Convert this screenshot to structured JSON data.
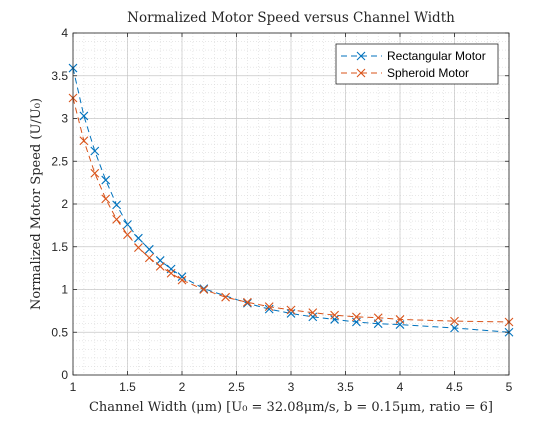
{
  "chart_data": {
    "type": "line",
    "title": "Normalized Motor Speed versus Channel Width",
    "xlabel": "Channel Width (μm) [U₀ = 32.08μm/s, b = 0.15μm, ratio = 6]",
    "ylabel": "Normalized Motor Speed (U/U₀)",
    "xlim": [
      1,
      5
    ],
    "ylim": [
      0,
      4
    ],
    "x_ticks": [
      "1",
      "1.5",
      "2",
      "2.5",
      "3",
      "3.5",
      "4",
      "4.5",
      "5"
    ],
    "y_ticks": [
      "0",
      "0.5",
      "1",
      "1.5",
      "2",
      "2.5",
      "3",
      "3.5",
      "4"
    ],
    "grid": true,
    "minor_grid": true,
    "legend_position": "top-right",
    "series": [
      {
        "name": "Rectangular Motor",
        "color": "#0072BD",
        "line_style": "dashed",
        "marker": "x",
        "x": [
          1.0,
          1.1,
          1.2,
          1.3,
          1.4,
          1.5,
          1.6,
          1.7,
          1.8,
          1.9,
          2.0,
          2.2,
          2.6,
          2.8,
          3.0,
          3.2,
          3.4,
          3.6,
          3.8,
          4.0,
          4.5,
          5.0
        ],
        "y": [
          3.59,
          3.03,
          2.62,
          2.28,
          1.99,
          1.76,
          1.6,
          1.47,
          1.34,
          1.24,
          1.15,
          1.01,
          0.84,
          0.77,
          0.72,
          0.68,
          0.65,
          0.62,
          0.6,
          0.59,
          0.55,
          0.5
        ]
      },
      {
        "name": "Spheroid Motor",
        "color": "#D95319",
        "line_style": "dashed",
        "marker": "x",
        "x": [
          1.0,
          1.1,
          1.2,
          1.3,
          1.4,
          1.5,
          1.6,
          1.7,
          1.8,
          1.9,
          2.0,
          2.2,
          2.4,
          2.6,
          2.8,
          3.0,
          3.2,
          3.4,
          3.6,
          3.8,
          4.0,
          4.5,
          5.0
        ],
        "y": [
          3.24,
          2.74,
          2.36,
          2.06,
          1.82,
          1.64,
          1.49,
          1.37,
          1.27,
          1.19,
          1.11,
          1.0,
          0.91,
          0.85,
          0.8,
          0.76,
          0.73,
          0.7,
          0.68,
          0.67,
          0.65,
          0.63,
          0.62
        ]
      }
    ]
  }
}
